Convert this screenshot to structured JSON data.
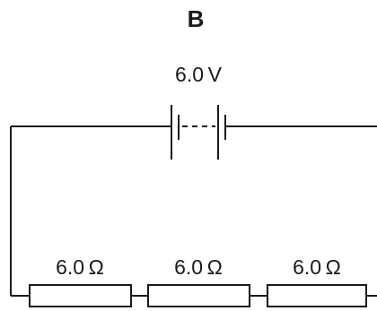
{
  "diagram": {
    "title": "B",
    "battery": {
      "label": "6.0 V"
    },
    "resistors": [
      {
        "label": "6.0 Ω"
      },
      {
        "label": "6.0 Ω"
      },
      {
        "label": "6.0 Ω"
      }
    ],
    "colors": {
      "line": "#1a1a1a",
      "background": "#ffffff"
    }
  }
}
